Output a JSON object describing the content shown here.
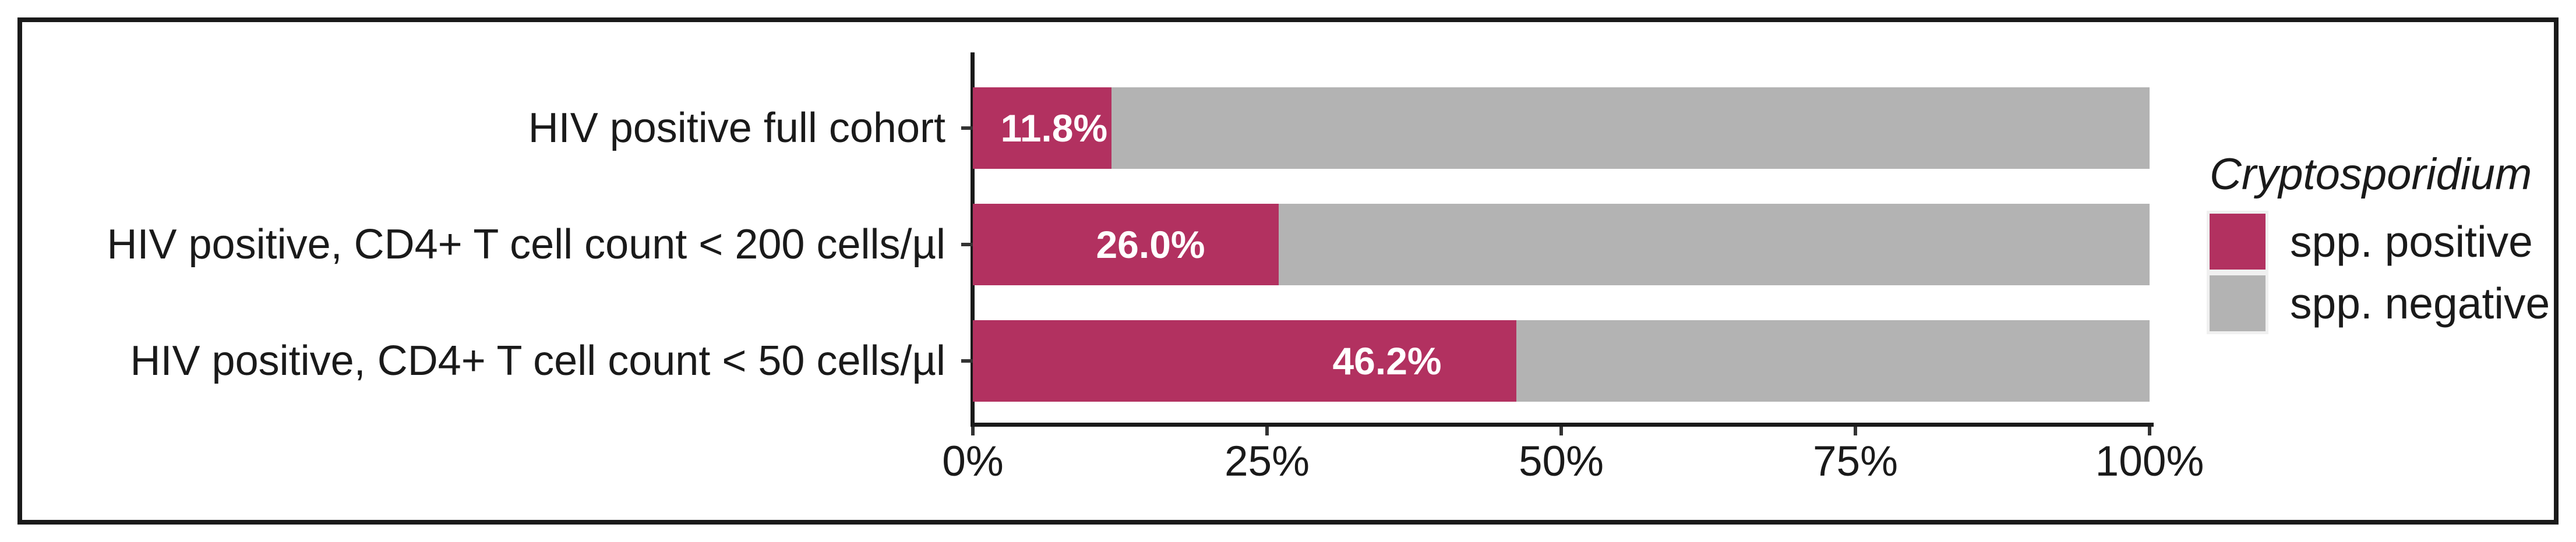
{
  "figure": {
    "background": "#ffffff",
    "border_color": "#1a1a1a",
    "axis_color": "#1a1a1a",
    "tick_color": "#333333"
  },
  "chart_data": {
    "type": "bar",
    "orientation": "horizontal",
    "stacked": true,
    "stacked_total": 100,
    "categories": [
      "HIV positive full cohort",
      "HIV positive, CD4+ T cell count < 200 cells/µl",
      "HIV positive, CD4+ T cell count < 50 cells/µl"
    ],
    "series": [
      {
        "name": "spp. positive",
        "color": "#b23160",
        "values": [
          11.8,
          26.0,
          46.2
        ]
      },
      {
        "name": "spp. negative",
        "color": "#b3b3b3",
        "values": [
          88.2,
          74.0,
          53.8
        ]
      }
    ],
    "bar_labels": [
      "11.8%",
      "26.0%",
      "46.2%"
    ],
    "bar_label_color": "#ffffff",
    "bar_label_center_pct": [
      6.9,
      15.1,
      35.2
    ],
    "x_ticks": [
      "0%",
      "25%",
      "50%",
      "75%",
      "100%"
    ],
    "x_tick_values": [
      0,
      25,
      50,
      75,
      100
    ],
    "xlim": [
      0,
      100
    ],
    "xlabel": "",
    "ylabel": "",
    "grid": false,
    "legend": {
      "title": "Cryptosporidium",
      "title_italic": true,
      "position": "right",
      "entries": [
        {
          "label": "spp. positive",
          "color": "#b23160"
        },
        {
          "label": "spp. negative",
          "color": "#b3b3b3"
        }
      ]
    }
  }
}
